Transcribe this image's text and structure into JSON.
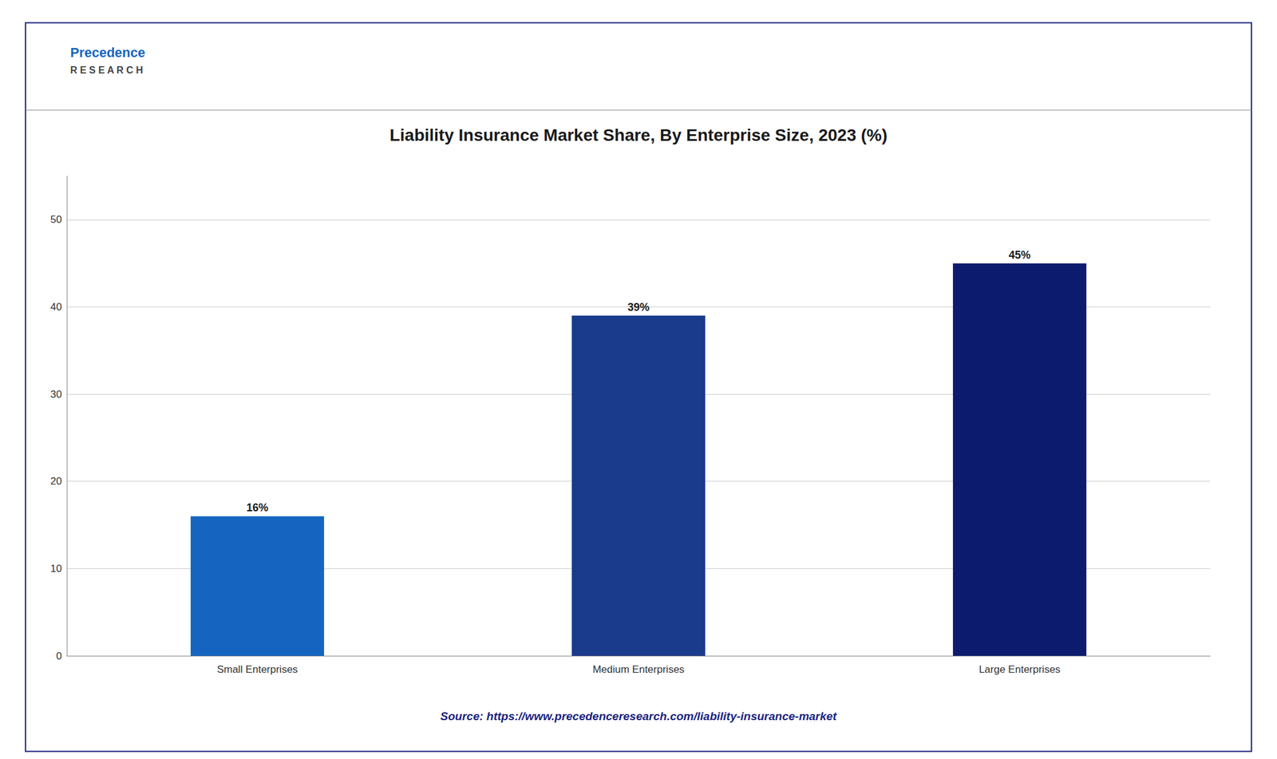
{
  "chart_data": {
    "type": "bar",
    "title": "Liability Insurance Market Share, By Enterprise Size, 2023 (%)",
    "categories": [
      "Small Enterprises",
      "Medium Enterprises",
      "Large Enterprises"
    ],
    "values": [
      16,
      39,
      45
    ],
    "value_labels": [
      "16%",
      "39%",
      "45%"
    ],
    "data_labels": true,
    "colors": [
      "#1565C0",
      "#1A3A8C",
      "#0D1B6E"
    ],
    "ylim": [
      0,
      55
    ],
    "yticks": [
      0,
      10,
      20,
      30,
      40,
      50
    ],
    "grid": true,
    "annotations": [
      "Precedence",
      "R E S E A R C H",
      "Source: https://www.precedenceresearch.com/liability-insurance-market"
    ]
  }
}
